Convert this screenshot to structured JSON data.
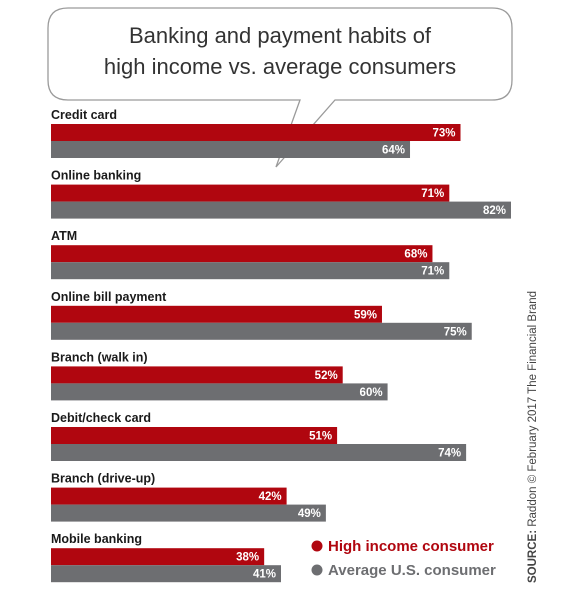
{
  "title_line1": "Banking and payment habits of",
  "title_line2": "high income vs. average consumers",
  "source_label": "SOURCE:",
  "source_text": "Raddon © February 2017 The Financial Brand",
  "colors": {
    "high_income": "#b0060f",
    "average": "#6d6e71",
    "bubble_stroke": "#9a9a9a"
  },
  "chart_data": {
    "type": "bar",
    "orientation": "horizontal",
    "categories": [
      "Credit card",
      "Online banking",
      "ATM",
      "Online bill payment",
      "Branch (walk in)",
      "Debit/check card",
      "Branch (drive-up)",
      "Mobile banking"
    ],
    "series": [
      {
        "name": "High income consumer",
        "values": [
          73,
          71,
          68,
          59,
          52,
          51,
          42,
          38
        ],
        "labels": [
          "73%",
          "71%",
          "68%",
          "59%",
          "52%",
          "51%",
          "42%",
          "38%"
        ]
      },
      {
        "name": "Average U.S. consumer",
        "values": [
          64,
          82,
          71,
          75,
          60,
          74,
          49,
          41
        ],
        "labels": [
          "64%",
          "82%",
          "71%",
          "75%",
          "60%",
          "74%",
          "49%",
          "41%"
        ]
      }
    ],
    "xlim": [
      0,
      82
    ],
    "legend_position": "bottom-right"
  }
}
